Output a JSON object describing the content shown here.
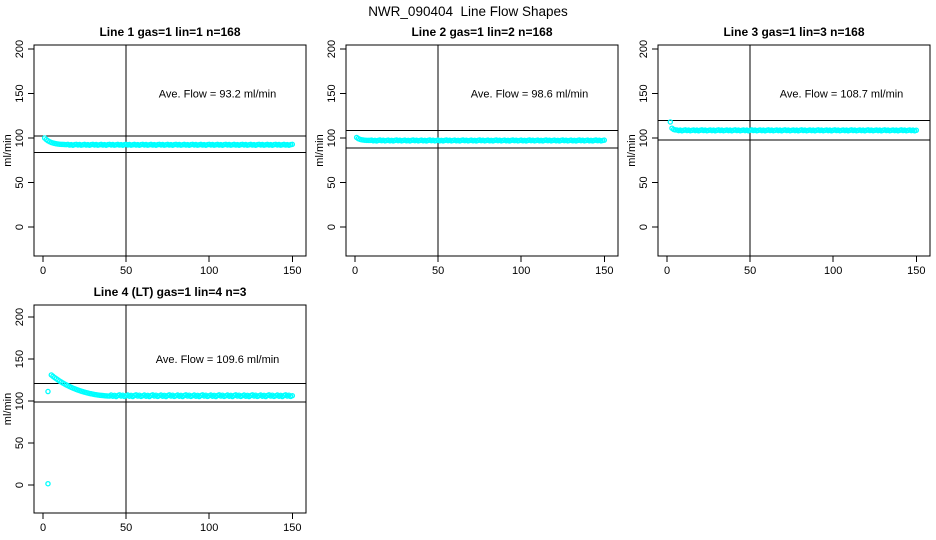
{
  "figure": {
    "title": "NWR_090404  Line Flow Shapes",
    "background_color": "#ffffff",
    "point_color": "#00ffff",
    "axis_color": "#000000"
  },
  "chart_data": [
    {
      "type": "scatter",
      "title": "Line 1 gas=1 lin=1 n=168",
      "annotation": "Ave. Flow =  93.2  ml/min",
      "ave_flow": 93.2,
      "n": 168,
      "ylabel": "ml/min",
      "xlim": [
        0,
        150
      ],
      "ylim": [
        0,
        200
      ],
      "xticks": [
        0,
        50,
        100,
        150
      ],
      "yticks": [
        0,
        50,
        100,
        150,
        200
      ],
      "vline_x": 50,
      "ref_lines": [
        102.5,
        83.9
      ],
      "x_start": 1,
      "x_step": 1,
      "y": [
        100.0,
        98.2,
        96.9,
        95.8,
        95.0,
        94.4,
        93.9,
        93.5,
        93.2,
        93.0,
        92.9,
        92.8,
        92.7,
        92.6,
        92.8,
        92.1,
        92.6,
        91.9,
        92.5,
        92.9,
        92.2,
        92.7,
        92.0,
        92.4,
        92.8,
        92.1,
        92.6,
        91.9,
        92.5,
        92.9,
        92.2,
        92.7,
        92.0,
        92.4,
        92.8,
        92.1,
        92.6,
        91.9,
        92.5,
        92.9,
        92.2,
        92.7,
        92.0,
        92.4,
        92.8,
        92.1,
        92.6,
        91.9,
        92.5,
        92.9,
        92.2,
        92.7,
        92.0,
        92.4,
        92.8,
        92.1,
        92.6,
        91.9,
        92.5,
        92.9,
        92.2,
        92.7,
        92.0,
        92.4,
        92.8,
        92.1,
        92.6,
        91.9,
        92.5,
        92.9,
        92.2,
        92.7,
        92.0,
        92.4,
        92.8,
        92.1,
        92.6,
        91.9,
        92.5,
        92.9,
        92.2,
        92.7,
        92.0,
        92.4,
        92.8,
        92.1,
        92.6,
        91.9,
        92.5,
        92.9,
        92.2,
        92.7,
        92.0,
        92.4,
        92.8,
        92.1,
        92.6,
        91.9,
        92.5,
        92.9,
        92.2,
        92.7,
        92.0,
        92.4,
        92.8,
        92.1,
        92.6,
        91.9,
        92.5,
        92.9,
        92.2,
        92.7,
        92.0,
        92.4,
        92.8,
        92.1,
        92.6,
        91.9,
        92.5,
        92.9,
        92.2,
        92.7,
        92.0,
        92.4,
        92.8,
        92.1,
        92.6,
        91.9,
        92.5,
        92.9,
        92.2,
        92.7,
        92.0,
        92.4,
        92.8,
        92.1,
        92.6,
        91.9,
        92.5,
        92.9,
        92.2,
        92.7,
        92.0,
        92.4,
        92.8,
        92.1,
        92.6,
        91.9,
        92.5,
        92.9
      ],
      "outliers": []
    },
    {
      "type": "scatter",
      "title": "Line 2 gas=1 lin=2 n=168",
      "annotation": "Ave. Flow =  98.6  ml/min",
      "ave_flow": 98.6,
      "n": 168,
      "ylabel": "ml/min",
      "xlim": [
        0,
        150
      ],
      "ylim": [
        0,
        200
      ],
      "xticks": [
        0,
        50,
        100,
        150
      ],
      "yticks": [
        0,
        50,
        100,
        150,
        200
      ],
      "vline_x": 50,
      "ref_lines": [
        108.5,
        88.7
      ],
      "x_start": 1,
      "x_step": 1,
      "y": [
        100.6,
        99.3,
        98.5,
        98.0,
        97.7,
        97.5,
        97.4,
        97.3,
        97.3,
        97.6,
        96.9,
        97.4,
        96.7,
        97.3,
        97.7,
        97.0,
        97.5,
        96.8,
        97.2,
        97.6,
        96.9,
        97.4,
        96.7,
        97.3,
        97.7,
        97.0,
        97.5,
        96.8,
        97.2,
        97.6,
        96.9,
        97.4,
        96.7,
        97.3,
        97.7,
        97.0,
        97.5,
        96.8,
        97.2,
        97.6,
        96.9,
        97.4,
        96.7,
        97.3,
        97.7,
        97.0,
        97.5,
        96.8,
        97.2,
        97.6,
        96.9,
        97.4,
        96.7,
        97.3,
        97.7,
        97.0,
        97.5,
        96.8,
        97.2,
        97.6,
        96.9,
        97.4,
        96.7,
        97.3,
        97.7,
        97.0,
        97.5,
        96.8,
        97.2,
        97.6,
        96.9,
        97.4,
        96.7,
        97.3,
        97.7,
        97.0,
        97.5,
        96.8,
        97.2,
        97.6,
        96.9,
        97.4,
        96.7,
        97.3,
        97.7,
        97.0,
        97.5,
        96.8,
        97.2,
        97.6,
        96.9,
        97.4,
        96.7,
        97.3,
        97.7,
        97.0,
        97.5,
        96.8,
        97.2,
        97.6,
        96.9,
        97.4,
        96.7,
        97.3,
        97.7,
        97.0,
        97.5,
        96.8,
        97.2,
        97.6,
        96.9,
        97.4,
        96.7,
        97.3,
        97.7,
        97.0,
        97.5,
        96.8,
        97.2,
        97.6,
        96.9,
        97.4,
        96.7,
        97.3,
        97.7,
        97.0,
        97.5,
        96.8,
        97.2,
        97.6,
        96.9,
        97.4,
        96.7,
        97.3,
        97.7,
        97.0,
        97.5,
        96.8,
        97.2,
        97.6,
        96.9,
        97.4,
        96.7,
        97.3,
        97.7,
        97.0,
        97.5,
        96.8,
        97.2,
        97.6
      ],
      "outliers": []
    },
    {
      "type": "scatter",
      "title": "Line 3 gas=1 lin=3 n=168",
      "annotation": "Ave. Flow =  108.7  ml/min",
      "ave_flow": 108.7,
      "n": 168,
      "ylabel": "ml/min",
      "xlim": [
        0,
        150
      ],
      "ylim": [
        0,
        200
      ],
      "xticks": [
        0,
        50,
        100,
        150
      ],
      "yticks": [
        0,
        50,
        100,
        150,
        200
      ],
      "vline_x": 50,
      "ref_lines": [
        119.6,
        97.8
      ],
      "x_start": 2,
      "x_step": 1,
      "y": [
        118.0,
        111.0,
        109.6,
        109.1,
        109.0,
        108.3,
        108.8,
        108.1,
        108.7,
        109.1,
        108.4,
        108.9,
        108.2,
        108.6,
        109.0,
        108.3,
        108.8,
        108.1,
        108.7,
        109.1,
        108.4,
        108.9,
        108.2,
        108.6,
        109.0,
        108.3,
        108.8,
        108.1,
        108.7,
        109.1,
        108.4,
        108.9,
        108.2,
        108.6,
        109.0,
        108.3,
        108.8,
        108.1,
        108.7,
        109.1,
        108.4,
        108.9,
        108.2,
        108.6,
        109.0,
        108.3,
        108.8,
        108.1,
        108.7,
        109.1,
        108.4,
        108.9,
        108.2,
        108.6,
        109.0,
        108.3,
        108.8,
        108.1,
        108.7,
        109.1,
        108.4,
        108.9,
        108.2,
        108.6,
        109.0,
        108.3,
        108.8,
        108.1,
        108.7,
        109.1,
        108.4,
        108.9,
        108.2,
        108.6,
        109.0,
        108.3,
        108.8,
        108.1,
        108.7,
        109.1,
        108.4,
        108.9,
        108.2,
        108.6,
        109.0,
        108.3,
        108.8,
        108.1,
        108.7,
        109.1,
        108.4,
        108.9,
        108.2,
        108.6,
        109.0,
        108.3,
        108.8,
        108.1,
        108.7,
        109.1,
        108.4,
        108.9,
        108.2,
        108.6,
        109.0,
        108.3,
        108.8,
        108.1,
        108.7,
        109.1,
        108.4,
        108.9,
        108.2,
        108.6,
        109.0,
        108.3,
        108.8,
        108.1,
        108.7,
        109.1,
        108.4,
        108.9,
        108.2,
        108.6,
        109.0,
        108.3,
        108.8,
        108.1,
        108.7,
        109.1,
        108.4,
        108.9,
        108.2,
        108.6,
        109.0,
        108.3,
        108.8,
        108.1,
        108.7,
        109.1,
        108.4,
        108.9,
        108.2,
        108.6,
        109.0,
        108.3,
        108.8,
        108.1,
        108.7
      ],
      "outliers": []
    },
    {
      "type": "scatter",
      "title": "Line 4 (LT) gas=1 lin=4 n=3",
      "annotation": "Ave. Flow =  109.6  ml/min",
      "ave_flow": 109.6,
      "n": 3,
      "ylabel": "ml/min",
      "xlim": [
        0,
        150
      ],
      "ylim": [
        0,
        200
      ],
      "xticks": [
        0,
        50,
        100,
        150
      ],
      "yticks": [
        0,
        50,
        100,
        150,
        200
      ],
      "vline_x": 50,
      "ref_lines": [
        120.6,
        98.6
      ],
      "x_start": 5,
      "x_step": 1,
      "y": [
        131.0,
        129.4,
        127.9,
        126.5,
        125.1,
        123.8,
        122.6,
        121.4,
        120.3,
        119.2,
        118.2,
        117.2,
        116.3,
        115.4,
        114.6,
        113.8,
        113.1,
        112.4,
        111.7,
        111.1,
        110.5,
        110.0,
        109.5,
        109.0,
        108.6,
        108.2,
        107.8,
        107.5,
        107.2,
        106.9,
        106.7,
        106.5,
        106.3,
        106.1,
        106.0,
        105.9,
        107.1,
        105.7,
        106.7,
        105.3,
        106.5,
        107.3,
        105.9,
        106.9,
        105.5,
        106.3,
        107.1,
        105.7,
        106.7,
        105.3,
        106.5,
        107.3,
        105.9,
        106.9,
        105.5,
        106.3,
        107.1,
        105.7,
        106.7,
        105.3,
        106.5,
        107.3,
        105.9,
        106.9,
        105.5,
        106.3,
        107.1,
        105.7,
        106.7,
        105.3,
        106.5,
        107.3,
        105.9,
        106.9,
        105.5,
        106.3,
        107.1,
        105.7,
        106.7,
        105.3,
        106.5,
        107.3,
        105.9,
        106.9,
        105.5,
        106.3,
        107.1,
        105.7,
        106.7,
        105.3,
        106.5,
        107.3,
        105.9,
        106.9,
        105.5,
        106.3,
        107.1,
        105.7,
        106.7,
        105.3,
        106.5,
        107.3,
        105.9,
        106.9,
        105.5,
        106.3,
        107.1,
        105.7,
        106.7,
        105.3,
        106.5,
        107.3,
        105.9,
        106.9,
        105.5,
        106.3,
        107.1,
        105.7,
        106.7,
        105.3,
        106.5,
        107.3,
        105.9,
        106.9,
        105.5,
        106.3,
        107.1,
        105.7,
        106.7,
        105.3,
        106.5,
        107.3,
        105.9,
        106.9,
        105.5,
        106.3,
        107.1,
        105.7,
        106.7,
        105.3,
        106.5,
        107.3,
        105.9,
        106.9,
        105.5,
        106.3
      ],
      "outliers": [
        [
          3,
          111.3
        ],
        [
          3,
          1.5
        ]
      ]
    }
  ]
}
